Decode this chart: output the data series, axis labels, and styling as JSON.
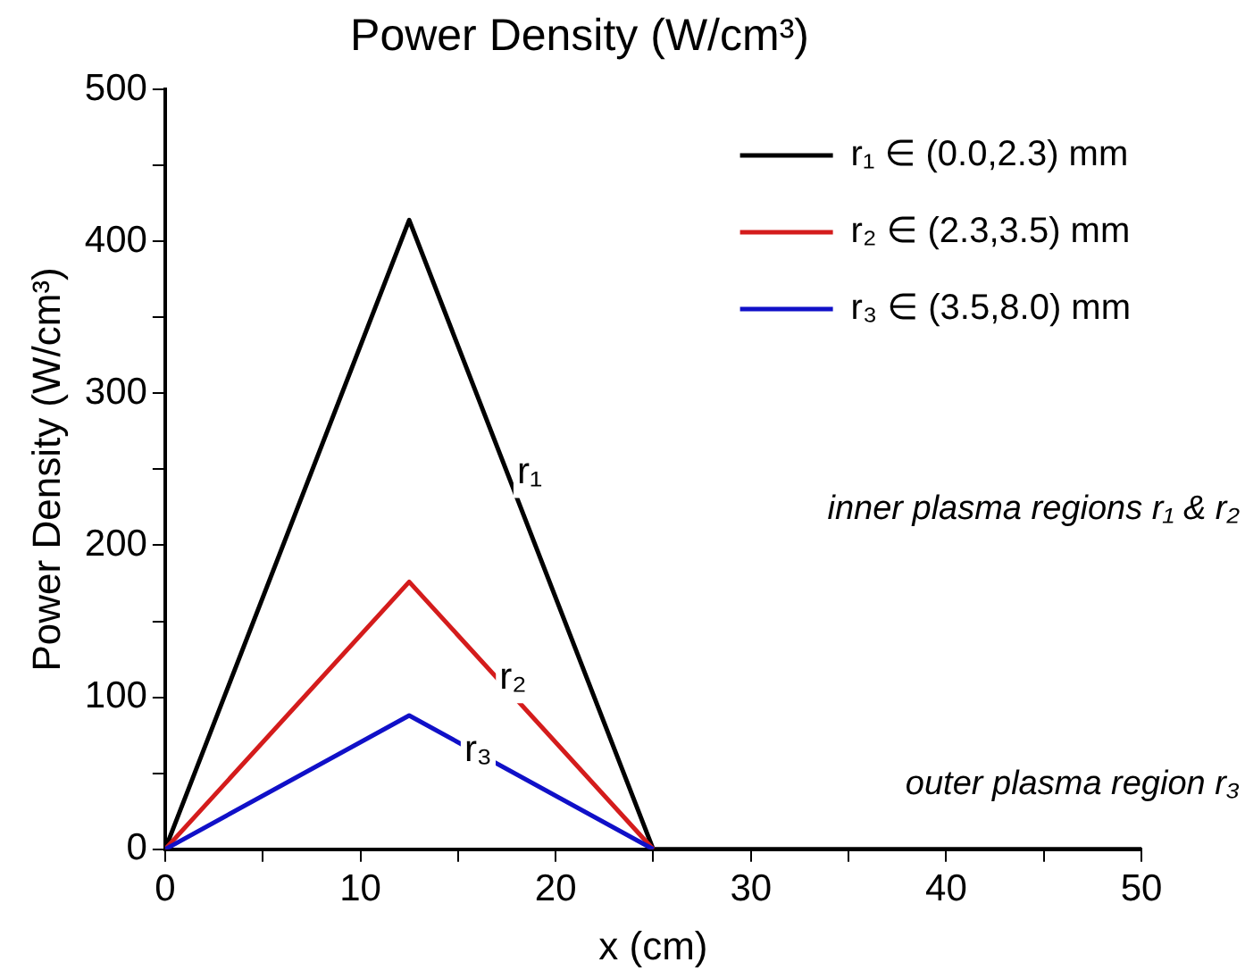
{
  "chart_data": {
    "type": "line",
    "title": "Power Density (W/cm³)",
    "xlabel": "x (cm)",
    "ylabel": "Power Density (W/cm³)",
    "series": [
      {
        "name": "r₁ ∈ (0.0,2.3) mm",
        "color": "#000000",
        "x": [
          0,
          12.5,
          25,
          50
        ],
        "values": [
          0,
          414,
          0,
          0
        ]
      },
      {
        "name": "r₂ ∈ (2.3,3.5) mm",
        "color": "#d41c1c",
        "x": [
          0,
          12.5,
          25
        ],
        "values": [
          0,
          176,
          0
        ]
      },
      {
        "name": "r₃ ∈ (3.5,8.0) mm",
        "color": "#1010c8",
        "x": [
          0,
          12.5,
          25
        ],
        "values": [
          0,
          88,
          0
        ]
      }
    ],
    "xlim": [
      0,
      50
    ],
    "ylim": [
      0,
      500
    ],
    "xticks": [
      0,
      {
        "value": 5,
        "label": null
      },
      10,
      {
        "value": 15,
        "label": null
      },
      20,
      {
        "value": 25,
        "label": null
      },
      30,
      {
        "value": 35,
        "label": null
      },
      40,
      {
        "value": 45,
        "label": null
      },
      50
    ],
    "yticks": [
      0,
      {
        "value": 50,
        "label": null
      },
      100,
      {
        "value": 150,
        "label": null
      },
      200,
      {
        "value": 250,
        "label": null
      },
      300,
      {
        "value": 350,
        "label": null
      },
      400,
      {
        "value": 450,
        "label": null
      },
      500
    ],
    "annotations": [
      {
        "text": "r₁",
        "x": 17.2,
        "y": 257
      },
      {
        "text": "r₂",
        "x": 16.3,
        "y": 122
      },
      {
        "text": "r₃",
        "x": 14.5,
        "y": 74
      },
      "inner plasma regions r₁ & r₂",
      "outer plasma region r₃"
    ],
    "legend": "top right",
    "grid": false,
    "marker": "none",
    "line_style": "solid"
  }
}
